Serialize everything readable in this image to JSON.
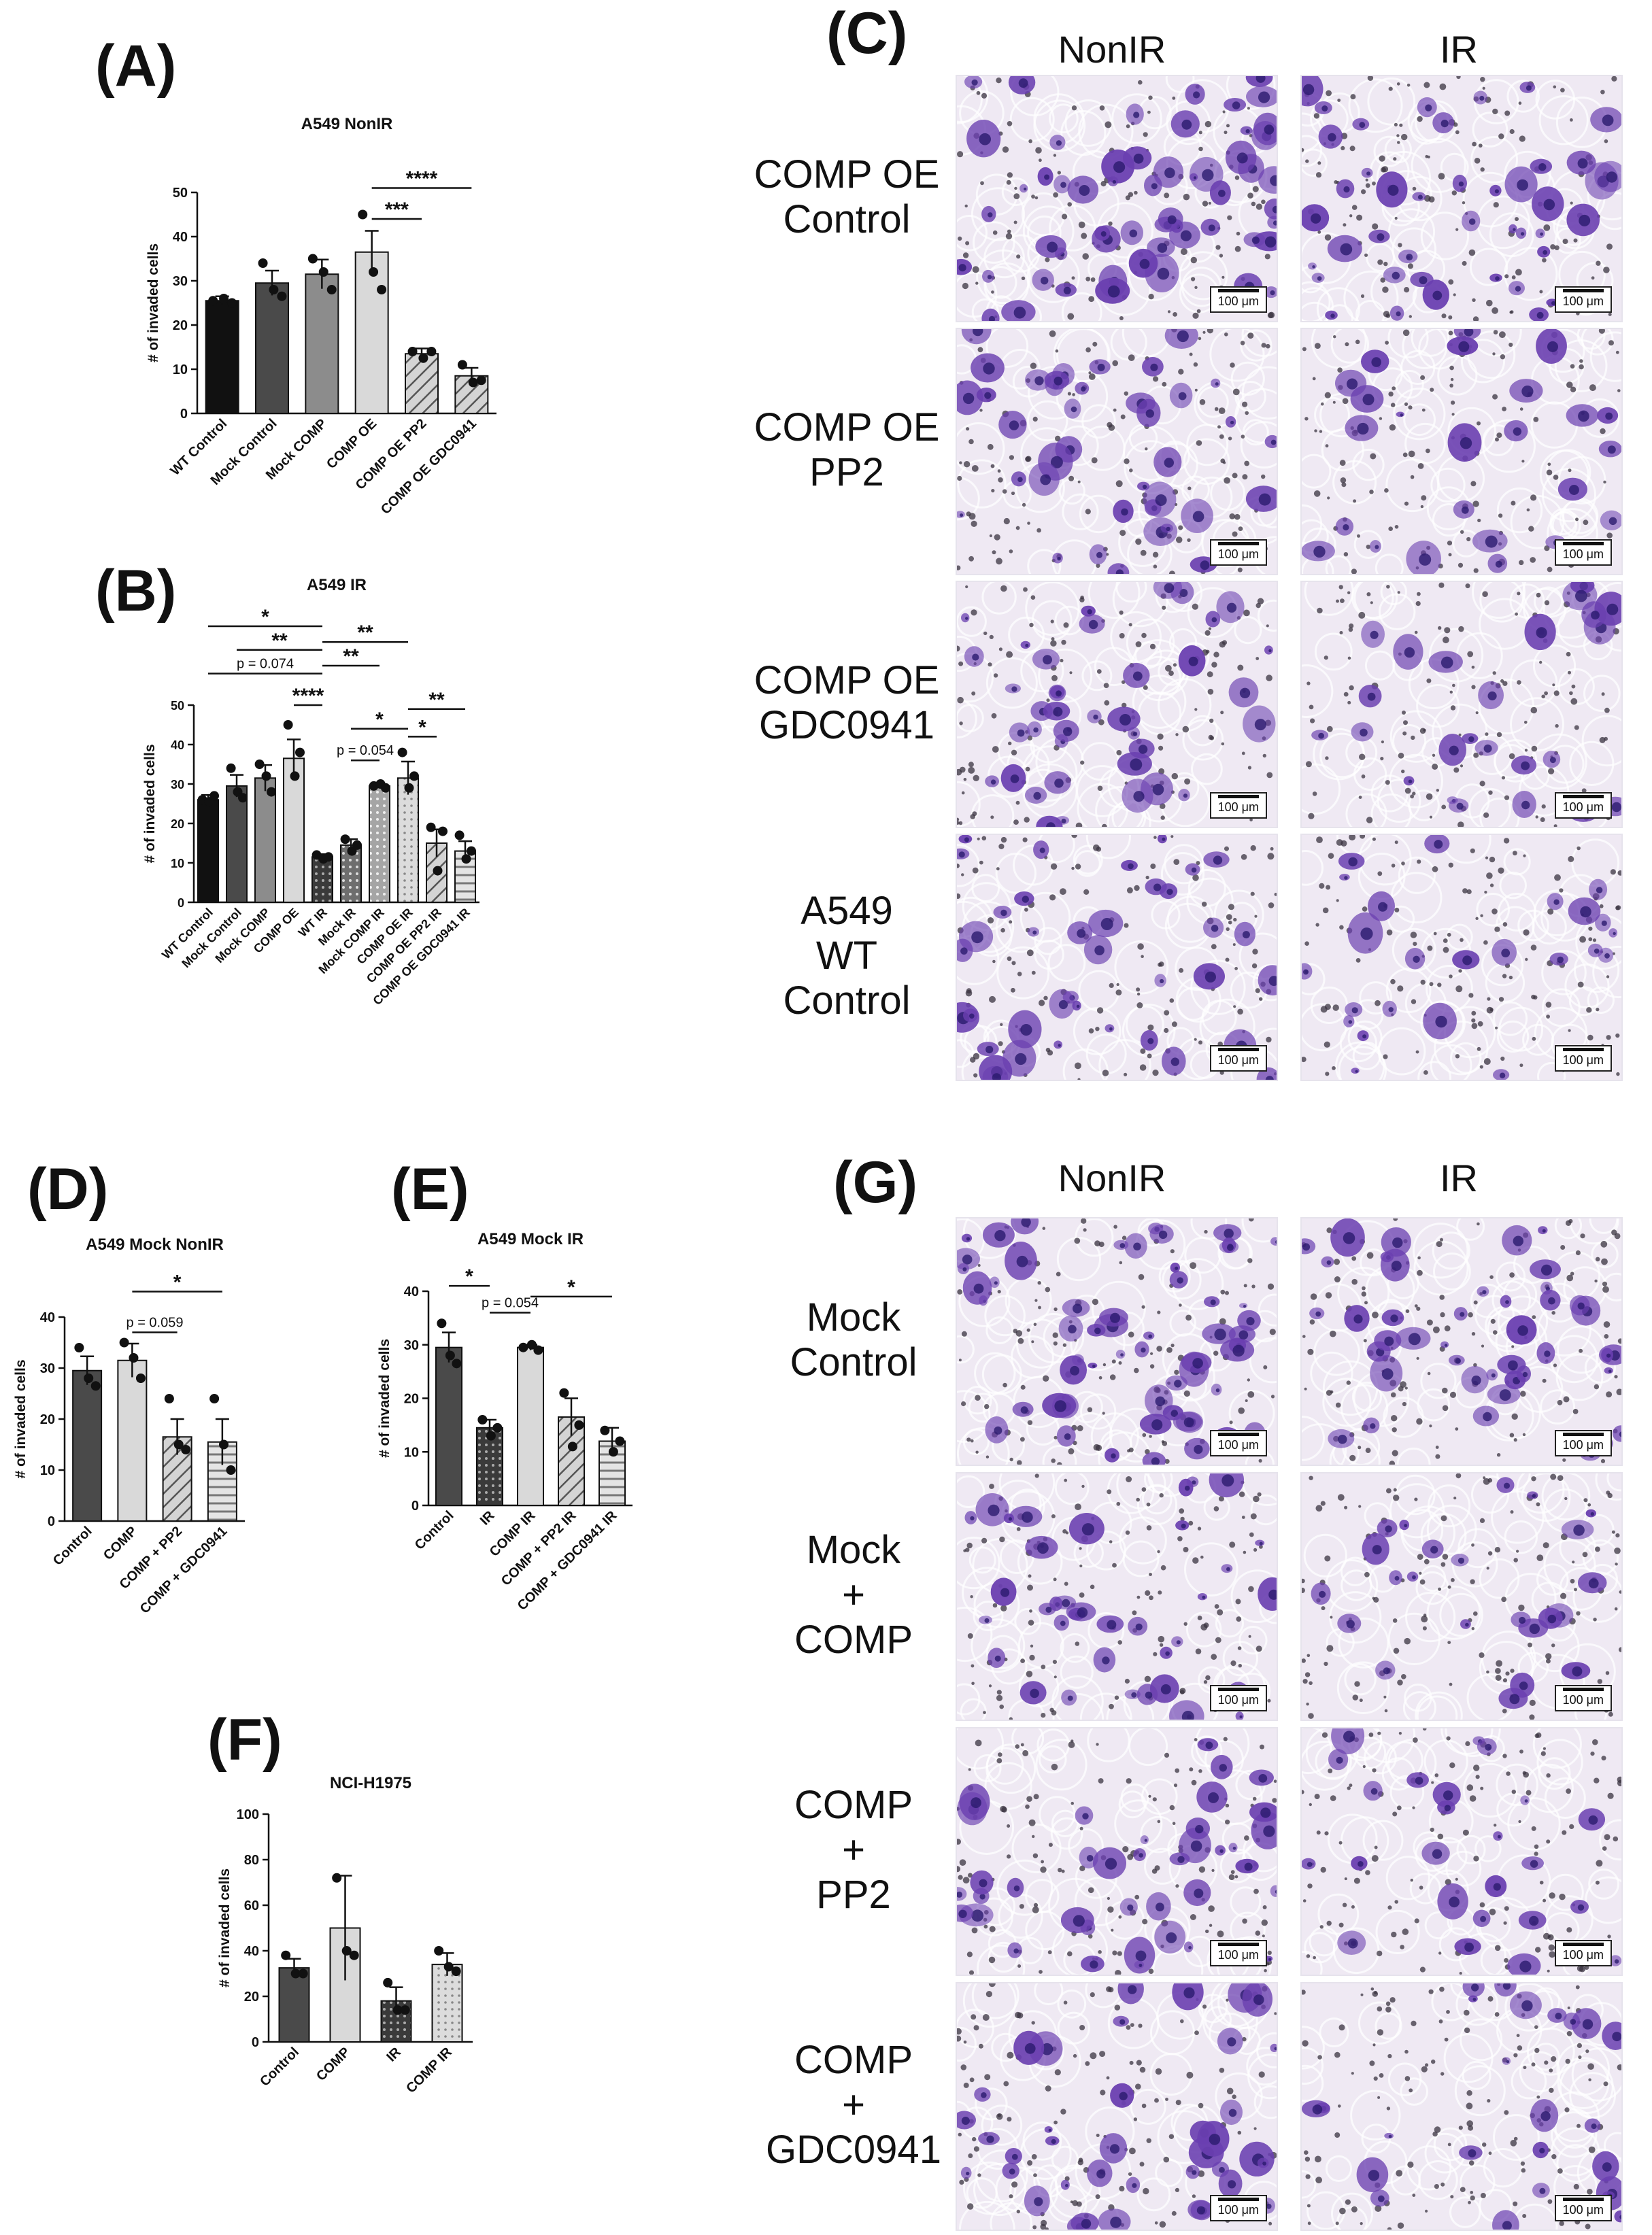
{
  "colors": {
    "black": "#111111",
    "dark": "#4a4a4a",
    "mid": "#8c8c8c",
    "light": "#bdbdbd",
    "lighter": "#d9d9d9",
    "stain": "#6a3fb0",
    "stain_dark": "#2b1a6e",
    "bg_nonir": "#efe9f3"
  },
  "panels": {
    "A": {
      "letter": "(A)"
    },
    "B": {
      "letter": "(B)"
    },
    "C": {
      "letter": "(C)"
    },
    "D": {
      "letter": "(D)"
    },
    "E": {
      "letter": "(E)"
    },
    "F": {
      "letter": "(F)"
    },
    "G": {
      "letter": "(G)"
    }
  },
  "micrographs_C": {
    "columns": [
      "NonIR",
      "IR"
    ],
    "rows": [
      {
        "label_lines": [
          "COMP OE",
          "Control"
        ]
      },
      {
        "label_lines": [
          "COMP OE",
          "PP2"
        ]
      },
      {
        "label_lines": [
          "COMP OE",
          "GDC0941"
        ]
      },
      {
        "label_lines": [
          "A549",
          "WT",
          "Control"
        ]
      }
    ],
    "scale_label": "100 μm"
  },
  "micrographs_G": {
    "columns": [
      "NonIR",
      "IR"
    ],
    "rows": [
      {
        "label_lines": [
          "Mock",
          "Control"
        ]
      },
      {
        "label_lines": [
          "Mock",
          "+",
          "COMP"
        ]
      },
      {
        "label_lines": [
          "COMP",
          "+",
          "PP2"
        ]
      },
      {
        "label_lines": [
          "COMP",
          "+",
          "GDC0941"
        ]
      }
    ],
    "scale_label": "100 μm"
  },
  "chart_data": [
    {
      "id": "A",
      "type": "bar",
      "title": "A549 NonIR",
      "ylabel": "# of invaded cells",
      "xlabel": "",
      "ylim": [
        0,
        50
      ],
      "yticks": [
        0,
        10,
        20,
        30,
        40,
        50
      ],
      "grid": false,
      "categories": [
        "WT Control",
        "Mock Control",
        "Mock COMP",
        "COMP OE",
        "COMP OE PP2",
        "COMP OE GDC0941"
      ],
      "values": [
        25.5,
        29.5,
        31.5,
        36.5,
        13.5,
        8.5
      ],
      "errors": [
        1.0,
        2.8,
        3.3,
        4.8,
        1.2,
        1.8
      ],
      "points": [
        [
          25.5,
          26,
          25
        ],
        [
          34,
          28,
          26.5
        ],
        [
          35,
          32,
          28
        ],
        [
          45,
          32,
          28
        ],
        [
          14,
          12.5,
          14
        ],
        [
          11,
          7,
          7.5
        ]
      ],
      "bar_styles": [
        "black",
        "dark",
        "mid",
        "lighter",
        "hatch",
        "hatch"
      ],
      "annotations": [
        {
          "from": 3,
          "to": 4,
          "y": 44,
          "label": "***"
        },
        {
          "from": 3,
          "to": 5,
          "y": 51,
          "label": "****"
        }
      ]
    },
    {
      "id": "B",
      "type": "bar",
      "title": "A549 IR",
      "ylabel": "# of invaded cells",
      "xlabel": "",
      "ylim": [
        0,
        50
      ],
      "yticks": [
        0,
        10,
        20,
        30,
        40,
        50
      ],
      "grid": false,
      "categories": [
        "WT Control",
        "Mock Control",
        "Mock COMP",
        "COMP OE",
        "WT IR",
        "Mock IR",
        "Mock COMP IR",
        "COMP OE IR",
        "COMP OE PP2 IR",
        "COMP OE GDC0941 IR"
      ],
      "values": [
        26,
        29.5,
        31.5,
        36.5,
        11.5,
        14.5,
        29.5,
        31.5,
        15,
        13
      ],
      "errors": [
        1.2,
        2.8,
        3.3,
        4.8,
        0.7,
        1.5,
        0.5,
        4.2,
        3.5,
        2.5
      ],
      "points": [
        [
          26,
          25.5,
          27
        ],
        [
          34,
          28,
          26.5
        ],
        [
          35,
          32,
          28
        ],
        [
          45,
          32,
          38
        ],
        [
          12,
          11,
          11.5
        ],
        [
          16,
          13,
          14.5
        ],
        [
          29.5,
          30,
          29
        ],
        [
          38,
          29,
          32
        ],
        [
          19,
          8,
          18
        ],
        [
          17,
          11,
          13
        ]
      ],
      "bar_styles": [
        "black",
        "dark",
        "mid",
        "lighter",
        "dots-dark",
        "dots-mid",
        "dots-light",
        "dots-lighter",
        "hatch",
        "hatch-h"
      ],
      "annotations": [
        {
          "from": 0,
          "to": 4,
          "y": 58,
          "label": "p = 0.074"
        },
        {
          "from": 1,
          "to": 4,
          "y": 64,
          "label": "**"
        },
        {
          "from": 0,
          "to": 4,
          "y": 70,
          "label": "*"
        },
        {
          "from": 4,
          "to": 7,
          "y": 66,
          "label": "**"
        },
        {
          "from": 4,
          "to": 6,
          "y": 60,
          "label": "**"
        },
        {
          "from": 3,
          "to": 4,
          "y": 50,
          "label": "****"
        },
        {
          "from": 5,
          "to": 6,
          "y": 36,
          "label": "p = 0.054"
        },
        {
          "from": 5,
          "to": 7,
          "y": 44,
          "label": "*"
        },
        {
          "from": 7,
          "to": 8,
          "y": 42,
          "label": "*"
        },
        {
          "from": 7,
          "to": 9,
          "y": 49,
          "label": "**"
        }
      ]
    },
    {
      "id": "D",
      "type": "bar",
      "title": "A549 Mock NonIR",
      "ylabel": "# of invaded cells",
      "xlabel": "",
      "ylim": [
        0,
        40
      ],
      "yticks": [
        0,
        10,
        20,
        30,
        40
      ],
      "grid": false,
      "categories": [
        "Control",
        "COMP",
        "COMP + PP2",
        "COMP + GDC0941"
      ],
      "values": [
        29.5,
        31.5,
        16.5,
        15.5
      ],
      "errors": [
        2.8,
        3.3,
        3.5,
        4.5
      ],
      "points": [
        [
          34,
          28,
          26.5
        ],
        [
          35,
          32,
          28
        ],
        [
          24,
          15,
          14
        ],
        [
          24,
          15,
          10
        ]
      ],
      "bar_styles": [
        "dark",
        "lighter",
        "hatch",
        "hatch-h"
      ],
      "annotations": [
        {
          "from": 1,
          "to": 2,
          "y": 37,
          "label": "p = 0.059"
        },
        {
          "from": 1,
          "to": 3,
          "y": 45,
          "label": "*"
        }
      ]
    },
    {
      "id": "E",
      "type": "bar",
      "title": "A549 Mock IR",
      "ylabel": "# of invaded cells",
      "xlabel": "",
      "ylim": [
        0,
        40
      ],
      "yticks": [
        0,
        10,
        20,
        30,
        40
      ],
      "grid": false,
      "categories": [
        "Control",
        "IR",
        "COMP IR",
        "COMP + PP2 IR",
        "COMP + GDC0941 IR"
      ],
      "values": [
        29.5,
        14.5,
        29.5,
        16.5,
        12
      ],
      "errors": [
        2.8,
        1.5,
        0.5,
        3.5,
        2.5
      ],
      "points": [
        [
          34,
          28,
          26.5
        ],
        [
          16,
          13,
          14.5
        ],
        [
          29.5,
          30,
          29
        ],
        [
          21,
          11,
          15
        ],
        [
          14,
          10,
          12
        ]
      ],
      "bar_styles": [
        "dark",
        "dots-dark",
        "lighter",
        "hatch",
        "hatch-h"
      ],
      "annotations": [
        {
          "from": 1,
          "to": 2,
          "y": 36,
          "label": "p = 0.054"
        },
        {
          "from": 0,
          "to": 1,
          "y": 41,
          "label": "*"
        },
        {
          "from": 2,
          "to": 4,
          "y": 39,
          "label": "*"
        }
      ]
    },
    {
      "id": "F",
      "type": "bar",
      "title": "NCI-H1975",
      "ylabel": "# of invaded cells",
      "xlabel": "",
      "ylim": [
        0,
        100
      ],
      "yticks": [
        0,
        20,
        40,
        60,
        80,
        100
      ],
      "grid": false,
      "categories": [
        "Control",
        "COMP",
        "IR",
        "COMP IR"
      ],
      "values": [
        32.5,
        50,
        18,
        34
      ],
      "errors": [
        4,
        23,
        6,
        5
      ],
      "points": [
        [
          38,
          30,
          30
        ],
        [
          72,
          40,
          38
        ],
        [
          26,
          14,
          14
        ],
        [
          40,
          33,
          31
        ]
      ],
      "bar_styles": [
        "dark",
        "lighter",
        "dots-dark",
        "dots-lighter"
      ],
      "annotations": []
    }
  ]
}
